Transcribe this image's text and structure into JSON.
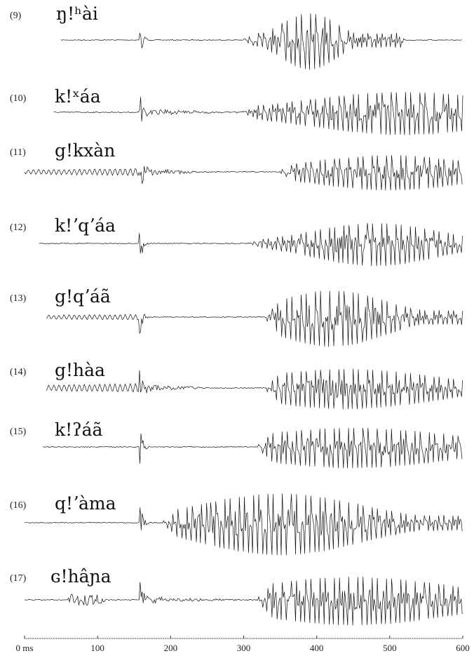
{
  "figure": {
    "rows": [
      {
        "number": "(9)",
        "word": "ŋ!ʰài"
      },
      {
        "number": "(10)",
        "word": "k!ˣáa"
      },
      {
        "number": "(11)",
        "word": "g!kxàn"
      },
      {
        "number": "(12)",
        "word": "k!ʼqʼáa"
      },
      {
        "number": "(13)",
        "word": "g!qʼáã"
      },
      {
        "number": "(14)",
        "word": "g!hàa"
      },
      {
        "number": "(15)",
        "word": "k!ʔáã"
      },
      {
        "number": "(16)",
        "word": "q!ʼàma"
      },
      {
        "number": "(17)",
        "word": "ɢ!hâɲa"
      }
    ],
    "axis": {
      "xlim": [
        0,
        600
      ],
      "xticks": [
        {
          "value": 0,
          "label": "0 ms"
        },
        100,
        200,
        300,
        400,
        500,
        600
      ]
    }
  }
}
